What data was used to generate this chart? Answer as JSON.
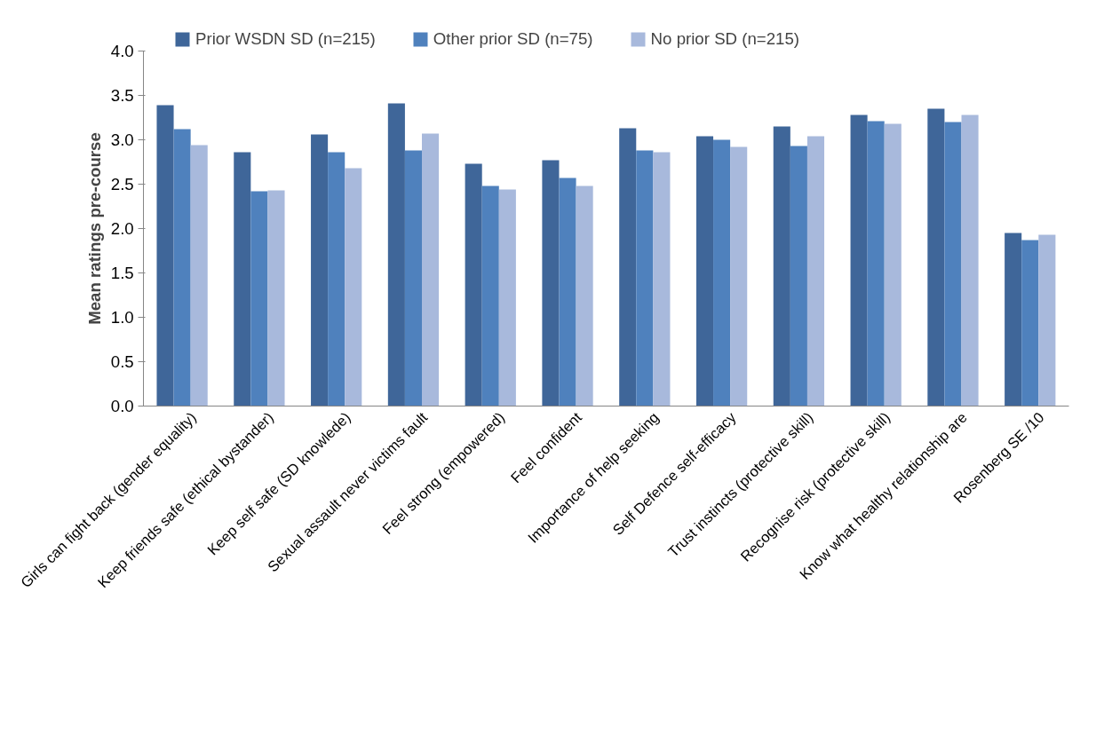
{
  "chart_data": {
    "type": "bar",
    "ylabel": "Mean ratings pre-course",
    "categories": [
      "Girls can fight back (gender equality)",
      "Keep friends safe (ethical bystander)",
      "Keep self safe (SD knowlede)",
      "Sexual assault never victims fault",
      "Feel strong (empowered)",
      "Feel confident",
      "Importance of help seeking",
      "Self Defence self-efficacy",
      "Trust instincts (protective skill)",
      "Recognise risk (protective skill)",
      "Know what healthy relationship are",
      "Rosenberg SE /10"
    ],
    "series": [
      {
        "name": "Prior WSDN SD (n=215)",
        "color": "#3f6699",
        "values": [
          3.39,
          2.86,
          3.06,
          3.41,
          2.73,
          2.77,
          3.13,
          3.04,
          3.15,
          3.28,
          3.35,
          1.95
        ]
      },
      {
        "name": "Other prior SD (n=75)",
        "color": "#4f81bd",
        "values": [
          3.12,
          2.42,
          2.86,
          2.88,
          2.48,
          2.57,
          2.88,
          3.0,
          2.93,
          3.21,
          3.2,
          1.87
        ]
      },
      {
        "name": "No prior SD (n=215)",
        "color": "#a8b9dc",
        "values": [
          2.94,
          2.43,
          2.68,
          3.07,
          2.44,
          2.48,
          2.86,
          2.92,
          3.04,
          3.18,
          3.28,
          1.93
        ]
      }
    ],
    "ylim": [
      0,
      4
    ],
    "yticks": [
      {
        "value": 0,
        "label": "0.0"
      },
      {
        "value": 0.5,
        "label": "0.5"
      },
      {
        "value": 1,
        "label": "1.0"
      },
      {
        "value": 1.5,
        "label": "1.5"
      },
      {
        "value": 2,
        "label": "2.0"
      },
      {
        "value": 2.5,
        "label": "2.5"
      },
      {
        "value": 3,
        "label": "3.0"
      },
      {
        "value": 3.5,
        "label": "3.5"
      },
      {
        "value": 4,
        "label": "4.0"
      }
    ],
    "grid": false,
    "legend": "top"
  }
}
